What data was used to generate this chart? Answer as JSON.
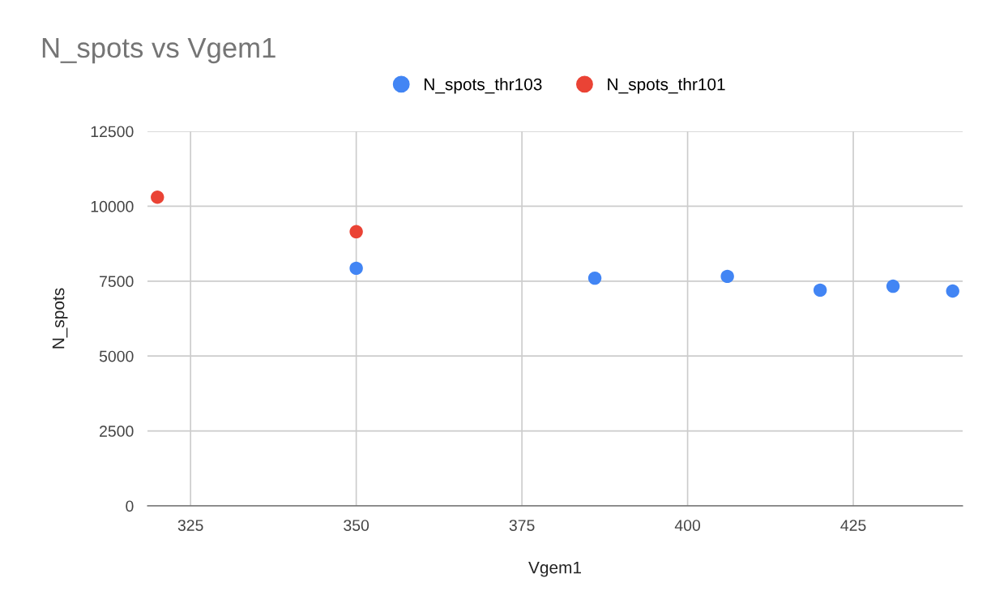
{
  "chart_data": {
    "type": "scatter",
    "title": "N_spots vs Vgem1",
    "xlabel": "Vgem1",
    "ylabel": "N_spots",
    "series": [
      {
        "name": "N_spots_thr103",
        "color": "#4285f4",
        "x": [
          350,
          386,
          406,
          420,
          431,
          440
        ],
        "values": [
          7930,
          7600,
          7660,
          7200,
          7330,
          7170
        ]
      },
      {
        "name": "N_spots_thr101",
        "color": "#ea4335",
        "x": [
          320,
          350
        ],
        "values": [
          10300,
          9150
        ]
      }
    ],
    "xlim": [
      318.5,
      441.5
    ],
    "xticks": [
      325,
      350,
      375,
      400,
      425
    ],
    "ylim": [
      0,
      12500
    ],
    "yticks": [
      0,
      2500,
      5000,
      7500,
      10000,
      12500
    ],
    "grid": true,
    "legend": "top",
    "marker": "circle"
  }
}
